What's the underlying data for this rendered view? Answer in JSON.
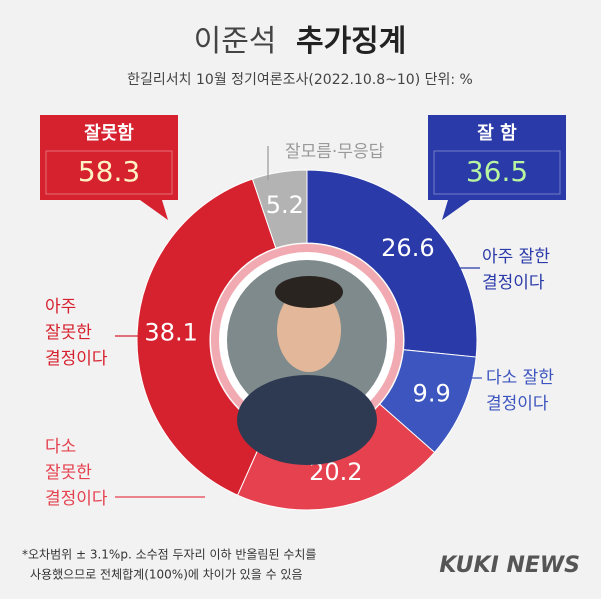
{
  "chart_data": {
    "type": "pie",
    "title": [
      "이준석",
      "추가징계"
    ],
    "subtitle": "한길리서치 10월 정기여론조사(2022.10.8~10) 단위: %",
    "series": [
      {
        "name": [
          "아주 잘한",
          "결정이다"
        ],
        "color": "#2a3aa8",
        "values": [
          26.6
        ]
      },
      {
        "name": [
          "다소 잘한",
          "결정이다"
        ],
        "color": "#3d55bf",
        "values": [
          9.9
        ]
      },
      {
        "name": [
          "다소",
          "잘못한",
          "결정이다"
        ],
        "color": "#e5414f",
        "values": [
          20.2
        ]
      },
      {
        "name": [
          "아주",
          "잘못한",
          "결정이다"
        ],
        "color": "#d6222f",
        "values": [
          38.1
        ]
      },
      {
        "name": [
          "잘모름·무응답"
        ],
        "color": "#b3b3b3",
        "values": [
          5.2
        ]
      }
    ],
    "callouts": [
      {
        "label": "잘못함",
        "value": 58.3,
        "color": "#d6222f",
        "value_color": "#fff3c4"
      },
      {
        "label": "잘 함",
        "value": 36.5,
        "color": "#2a3aa8",
        "value_color": "#b8f5a0"
      }
    ],
    "footnote": [
      "*오차범위 ± 3.1%p. 소수점 두자리 이하 반올림된 수치를",
      "사용했으므로 전체합계(100%)에 차이가 있을 수 있음"
    ],
    "source": "KUKI NEWS"
  }
}
